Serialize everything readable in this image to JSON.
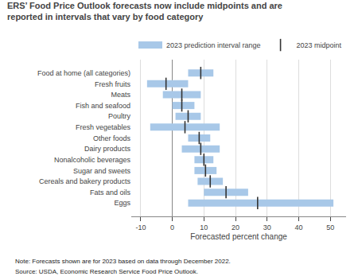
{
  "chart_data": {
    "type": "bar",
    "orientation": "horizontal",
    "title": "ERS’ Food Price Outlook forecasts now include midpoints and are\nreported in intervals that vary by food category",
    "categories": [
      "Eggs",
      "Fats and oils",
      "Cereals and bakery products",
      "Sugar and sweets",
      "Nonalcoholic beverages",
      "Dairy products",
      "Other foods",
      "Fresh vegetables",
      "Poultry",
      "Fish and seafood",
      "Meats",
      "Fresh fruits",
      "Food at home (all categories)"
    ],
    "series": [
      {
        "name": "2023 prediction interval range",
        "type": "range",
        "color": "#a8c8e8",
        "low": [
          5,
          10,
          8,
          7,
          7,
          3,
          5,
          -7,
          1,
          0,
          -3,
          -8,
          5
        ],
        "high": [
          51,
          24,
          16,
          14,
          13,
          15,
          12,
          15,
          9,
          7,
          9,
          5,
          13
        ]
      },
      {
        "name": "2023 midpoint",
        "type": "scatter",
        "marker": "line",
        "color": "#333333",
        "values": [
          27,
          17,
          12,
          10.5,
          10,
          9,
          8.5,
          4,
          5,
          3,
          3,
          -2,
          9
        ]
      }
    ],
    "xlabel": "Forecasted percent change",
    "xlim": [
      -13,
      55
    ],
    "xticks": [
      -10,
      0,
      10,
      20,
      30,
      40,
      50
    ],
    "grid": true,
    "legend": "upper right",
    "annotations": [
      "Note: Forecasts shown are for 2023 based on data through December 2022.",
      "Source: USDA, Economic Research Service Food Price Outlook."
    ]
  }
}
